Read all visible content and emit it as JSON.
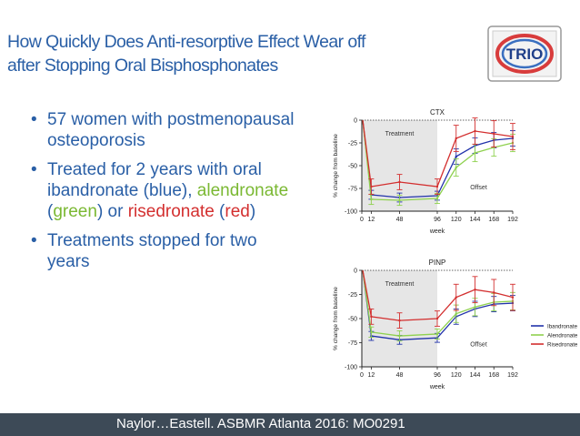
{
  "slide": {
    "title_line1": "How Quickly Does Anti-resorptive Effect Wear off",
    "title_line2": "after Stopping Oral Bisphosphonates",
    "logo_text": "TRIO",
    "bullets": [
      {
        "text": "57 women with postmenopausal osteoporosis"
      },
      {
        "text": "Treated for 2 years with oral ibandronate (blue), alendronate (green) or risedronate (red)"
      },
      {
        "text": "Treatments stopped for two years"
      }
    ],
    "bullet2_parts": {
      "p1": "Treated for 2 years with oral ibandronate (blue), ",
      "green": "alendronate",
      "p2": " (",
      "green2": "green",
      "p3": ") or ",
      "red": "risedronate",
      "p4": " (",
      "red2": "red",
      "p5": ")"
    },
    "footer": "Naylor…Eastell. ASBMR Atlanta 2016: MO0291"
  },
  "colors": {
    "title": "#2a5fa6",
    "ibandronate": "#2233aa",
    "alendronate": "#8fd14f",
    "risedronate": "#d32f2f",
    "footer_bg": "#3d4a57",
    "treatment_band": "#e6e6e6"
  },
  "chart_data": [
    {
      "type": "line",
      "title": "CTX",
      "xlabel": "week",
      "ylabel": "% change from baseline",
      "x_ticks": [
        "0",
        "12",
        "48",
        "96",
        "120",
        "144",
        "168",
        "192"
      ],
      "y_ticks": [
        "0",
        "-25",
        "-50",
        "-75",
        "-100"
      ],
      "xlim": [
        0,
        192
      ],
      "ylim": [
        -100,
        0
      ],
      "annotations": [
        "Treatment",
        "Offset"
      ],
      "x": [
        12,
        48,
        96,
        120,
        144,
        168,
        192
      ],
      "series": [
        {
          "name": "Ibandronate",
          "values": [
            -82,
            -85,
            -83,
            -40,
            -28,
            -22,
            -20
          ]
        },
        {
          "name": "Alendronate",
          "values": [
            -87,
            -88,
            -86,
            -52,
            -36,
            -30,
            -25
          ]
        },
        {
          "name": "Risedronate",
          "values": [
            -73,
            -68,
            -73,
            -20,
            -12,
            -15,
            -18
          ]
        }
      ]
    },
    {
      "type": "line",
      "title": "PINP",
      "xlabel": "week",
      "ylabel": "% change from baseline",
      "x_ticks": [
        "0",
        "12",
        "48",
        "96",
        "120",
        "144",
        "168",
        "192"
      ],
      "y_ticks": [
        "0",
        "-25",
        "-50",
        "-75",
        "-100"
      ],
      "xlim": [
        0,
        192
      ],
      "ylim": [
        -100,
        0
      ],
      "annotations": [
        "Treatment",
        "Offset"
      ],
      "legend": [
        "Ibandronate",
        "Alendronate",
        "Risedronate"
      ],
      "x": [
        12,
        48,
        96,
        120,
        144,
        168,
        192
      ],
      "series": [
        {
          "name": "Ibandronate",
          "values": [
            -68,
            -72,
            -70,
            -48,
            -40,
            -35,
            -34
          ]
        },
        {
          "name": "Alendronate",
          "values": [
            -64,
            -68,
            -66,
            -45,
            -38,
            -33,
            -32
          ]
        },
        {
          "name": "Risedronate",
          "values": [
            -48,
            -52,
            -50,
            -28,
            -20,
            -23,
            -28
          ]
        }
      ]
    }
  ]
}
